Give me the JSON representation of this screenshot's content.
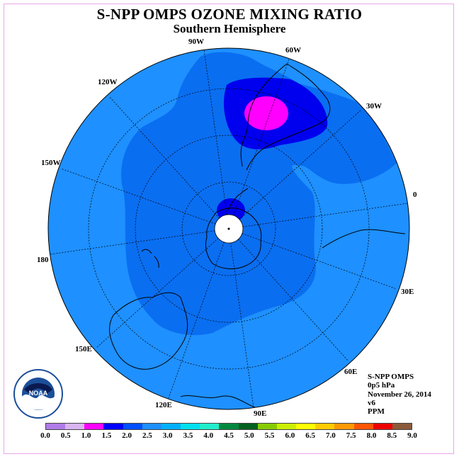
{
  "header": {
    "title": "S-NPP OMPS OZONE MIXING RATIO",
    "subtitle": "Southern Hemisphere"
  },
  "map": {
    "projection": "south-polar-stereographic",
    "longitude_labels": [
      "90W",
      "60W",
      "30W",
      "0",
      "30E",
      "60E",
      "90E",
      "120E",
      "150E",
      "180",
      "150W",
      "120W"
    ]
  },
  "logo": {
    "text": "NOAA",
    "icon": "noaa-logo-icon"
  },
  "info": {
    "instrument": "S-NPP OMPS",
    "level": "0p5 hPa",
    "date": "November 26, 2014",
    "version": "v6",
    "units": "PPM"
  },
  "colorbar": {
    "colors": [
      "#b07ce8",
      "#d8b4f0",
      "#ff00ff",
      "#0000ff",
      "#0050ff",
      "#1e90ff",
      "#00b0ff",
      "#00e0f0",
      "#22eecc",
      "#008840",
      "#006020",
      "#88cc00",
      "#ccee00",
      "#ffff00",
      "#ffcc00",
      "#ff9900",
      "#ff5500",
      "#ee0000",
      "#8b5a3a"
    ],
    "tick_labels": [
      "0.0",
      "0.5",
      "1.0",
      "1.5",
      "2.0",
      "2.5",
      "3.0",
      "3.5",
      "4.0",
      "4.5",
      "5.0",
      "5.5",
      "6.0",
      "6.5",
      "7.0",
      "7.5",
      "8.0",
      "8.5",
      "9.0"
    ]
  }
}
